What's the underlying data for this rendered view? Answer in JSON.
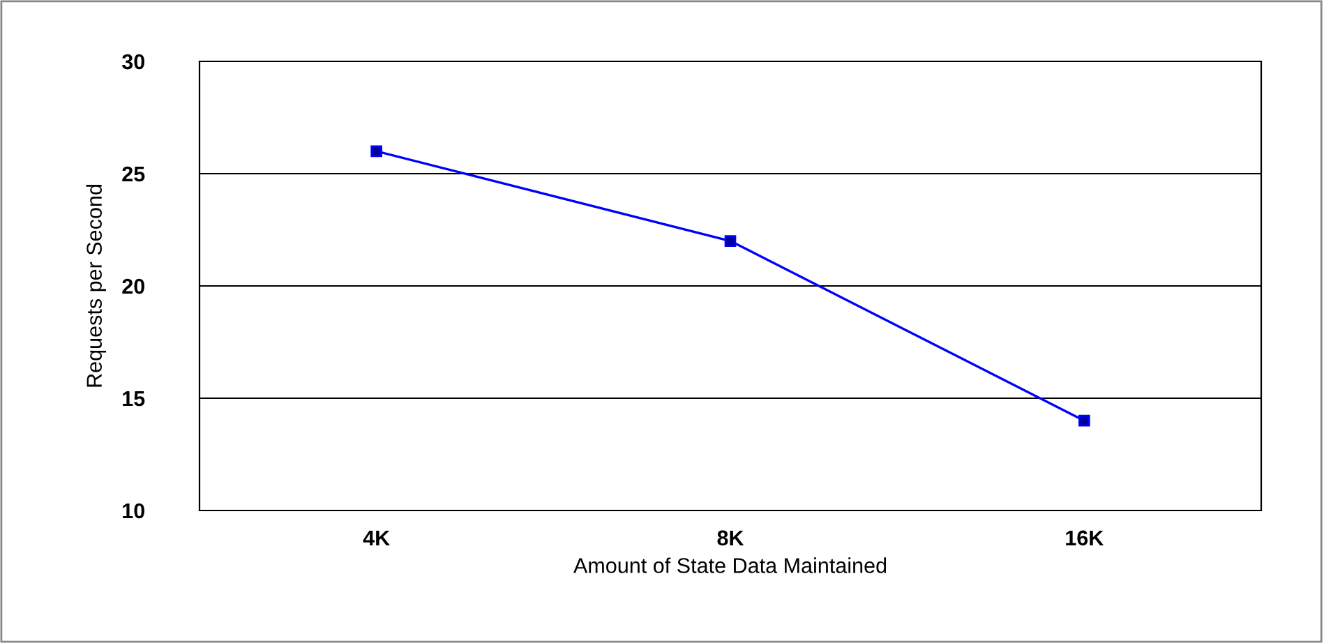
{
  "chart_data": {
    "type": "line",
    "xlabel": "Amount of State Data Maintained",
    "ylabel": "Requests per Second",
    "categories": [
      "4K",
      "8K",
      "16K"
    ],
    "series": [
      {
        "color": "#0000ff",
        "values": [
          26,
          22,
          14
        ]
      }
    ],
    "ylim": [
      10,
      30
    ],
    "yticks": [
      10,
      15,
      20,
      25,
      30
    ],
    "grid": "y",
    "marker": "square",
    "line_style": "solid",
    "legend": false
  }
}
